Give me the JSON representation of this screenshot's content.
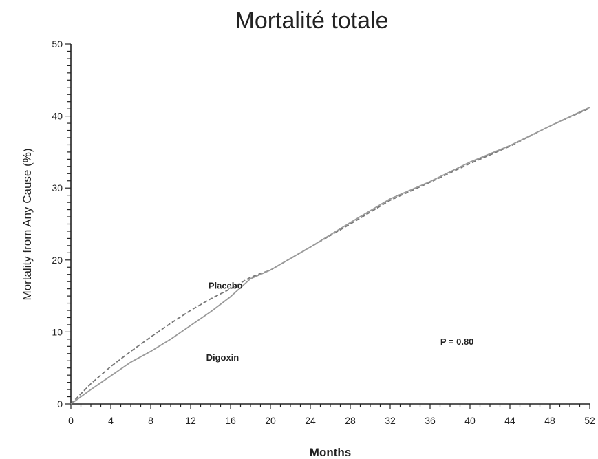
{
  "title": "Mortalité totale",
  "chart_data": {
    "type": "line",
    "title": "Mortalité totale",
    "xlabel": "Months",
    "ylabel": "Mortality from Any Cause (%)",
    "xlim": [
      0,
      52
    ],
    "ylim": [
      0,
      50
    ],
    "x_ticks": [
      0,
      4,
      8,
      12,
      16,
      20,
      24,
      28,
      32,
      36,
      40,
      44,
      48,
      52
    ],
    "y_ticks": [
      0,
      10,
      20,
      30,
      40,
      50
    ],
    "x_minor_step": 1,
    "y_minor_step": 1,
    "grid": false,
    "series": [
      {
        "name": "Placebo",
        "style": "dashed",
        "color": "#777777",
        "x": [
          0,
          2,
          4,
          6,
          8,
          10,
          12,
          14,
          16,
          18,
          20,
          24,
          28,
          32,
          36,
          40,
          44,
          48,
          52
        ],
        "y": [
          0,
          2.8,
          5.2,
          7.3,
          9.3,
          11.2,
          13.0,
          14.6,
          16.0,
          17.6,
          18.6,
          21.8,
          25.0,
          28.3,
          30.8,
          33.4,
          35.8,
          38.6,
          41.1
        ]
      },
      {
        "name": "Digoxin",
        "style": "solid",
        "color": "#9a9a9a",
        "x": [
          0,
          2,
          4,
          6,
          8,
          10,
          12,
          14,
          16,
          18,
          20,
          24,
          28,
          32,
          36,
          40,
          44,
          48,
          52
        ],
        "y": [
          0,
          2.0,
          3.9,
          5.8,
          7.3,
          9.0,
          10.9,
          12.8,
          14.9,
          17.4,
          18.6,
          21.8,
          25.2,
          28.5,
          30.9,
          33.6,
          35.9,
          38.6,
          41.2
        ]
      }
    ],
    "annotations": [
      {
        "text": "Placebo",
        "x": 15.5,
        "y": 16.0
      },
      {
        "text": "Digoxin",
        "x": 15.2,
        "y": 6.0
      },
      {
        "text": "P = 0.80",
        "x": 38.7,
        "y": 8.2
      }
    ]
  }
}
